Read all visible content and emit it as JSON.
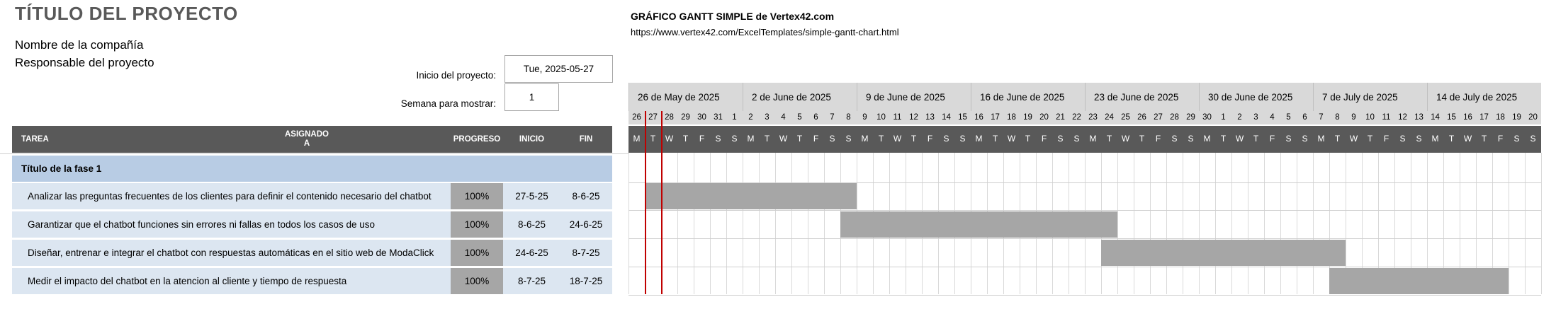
{
  "project": {
    "title": "TÍTULO DEL PROYECTO",
    "company": "Nombre de la compañía",
    "manager": "Responsable del proyecto"
  },
  "template": {
    "title": "GRÁFICO GANTT SIMPLE de Vertex42.com",
    "url": "https://www.vertex42.com/ExcelTemplates/simple-gantt-chart.html"
  },
  "controls": {
    "start_label": "Inicio del proyecto:",
    "start_value": "Tue, 2025-05-27",
    "week_label": "Semana para mostrar:",
    "week_value": "1"
  },
  "headers": {
    "task": "TAREA",
    "assigned": "ASIGNADO\nA",
    "progress": "PROGRESO",
    "start": "INICIO",
    "end": "FIN"
  },
  "weeks": [
    "26 de May de 2025",
    "2 de June de 2025",
    "9 de June de 2025",
    "16 de June de 2025",
    "23 de June de 2025",
    "30 de June de 2025",
    "7 de July de 2025",
    "14 de July de 2025"
  ],
  "day_numbers": [
    "26",
    "27",
    "28",
    "29",
    "30",
    "31",
    "1",
    "2",
    "3",
    "4",
    "5",
    "6",
    "7",
    "8",
    "9",
    "10",
    "11",
    "12",
    "13",
    "14",
    "15",
    "16",
    "17",
    "18",
    "19",
    "20",
    "21",
    "22",
    "23",
    "24",
    "25",
    "26",
    "27",
    "28",
    "29",
    "30",
    "1",
    "2",
    "3",
    "4",
    "5",
    "6",
    "7",
    "8",
    "9",
    "10",
    "11",
    "12",
    "13",
    "14",
    "15",
    "16",
    "17",
    "18",
    "19",
    "20"
  ],
  "day_letters": [
    "M",
    "T",
    "W",
    "T",
    "F",
    "S",
    "S"
  ],
  "today_index": 1,
  "phase": {
    "label": "Título de la fase 1"
  },
  "tasks": [
    {
      "name": "Analizar las preguntas frecuentes de los clientes para definir el contenido necesario del chatbot",
      "progress": "100%",
      "start": "27-5-25",
      "end": "8-6-25",
      "start_day": 1,
      "end_day": 13
    },
    {
      "name": "Garantizar que el chatbot funciones sin errores ni fallas en todos los casos de uso",
      "progress": "100%",
      "start": "8-6-25",
      "end": "24-6-25",
      "start_day": 13,
      "end_day": 29
    },
    {
      "name": "Diseñar, entrenar e integrar el chatbot con respuestas automáticas en el sitio web de ModaClick",
      "progress": "100%",
      "start": "24-6-25",
      "end": "8-7-25",
      "start_day": 29,
      "end_day": 43
    },
    {
      "name": "Medir el impacto del chatbot en la atencion al cliente y tiempo de respuesta",
      "progress": "100%",
      "start": "8-7-25",
      "end": "18-7-25",
      "start_day": 43,
      "end_day": 53
    }
  ],
  "colors": {
    "header_bg": "#595959",
    "phase_bg": "#b8cce4",
    "task_bg": "#dce6f1",
    "bar": "#a6a6a6",
    "today_line": "#c00000",
    "week_band": "#d9d9d9"
  }
}
